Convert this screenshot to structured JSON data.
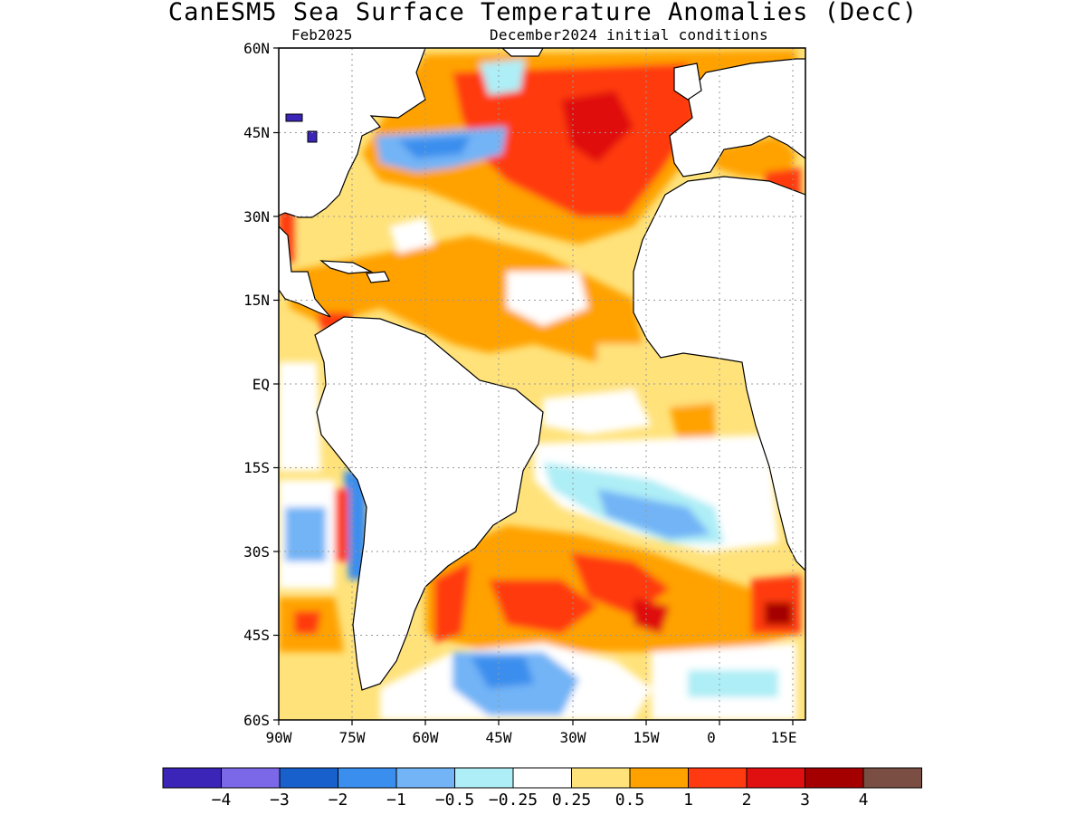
{
  "title": "CanESM5 Sea Surface Temperature Anomalies (DecC)",
  "subtitle_left": "Feb2025",
  "subtitle_right": "December2024 initial conditions",
  "lat_labels": [
    "60N",
    "45N",
    "30N",
    "15N",
    "EQ",
    "15S",
    "30S",
    "45S",
    "60S"
  ],
  "lon_labels": [
    "90W",
    "75W",
    "60W",
    "45W",
    "30W",
    "15W",
    "0",
    "15E"
  ],
  "colorbar": {
    "colors": [
      "#3a25b8",
      "#7b68e8",
      "#1860cc",
      "#3a8eee",
      "#72b4f6",
      "#aeeef6",
      "#ffffff",
      "#ffe27a",
      "#ffa200",
      "#ff3a10",
      "#e01010",
      "#a50000",
      "#7a4e42"
    ],
    "labels": [
      "-4",
      "-3",
      "-2",
      "-1",
      "-0.5",
      "-0.25",
      "0.25",
      "0.5",
      "1",
      "2",
      "3",
      "4"
    ]
  },
  "colors": {
    "land": "#ffffff",
    "coast": "#000000",
    "grid": "#999999"
  }
}
